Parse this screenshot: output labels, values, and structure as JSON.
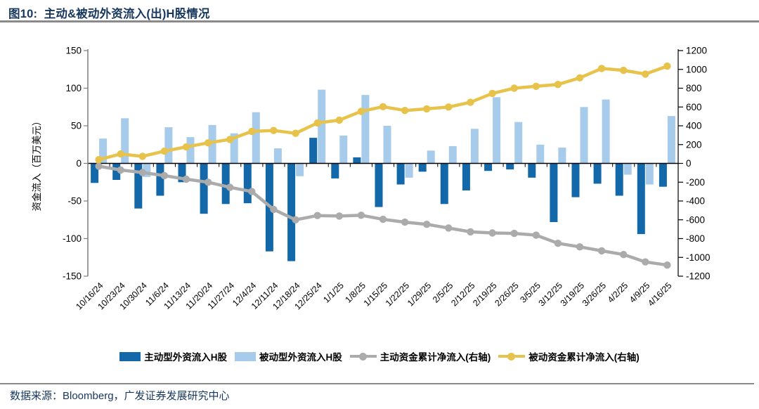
{
  "header": {
    "title": "图10:  主动&被动外资流入(出)H股情况"
  },
  "footer": {
    "source": "数据来源：Bloomberg，广发证券发展研究中心"
  },
  "chart_data": {
    "type": "combo-bar-line",
    "categories": [
      "10/16/24",
      "10/23/24",
      "10/30/24",
      "11/6/24",
      "11/13/24",
      "11/20/24",
      "11/27/24",
      "12/4/24",
      "12/11/24",
      "12/18/24",
      "12/25/24",
      "1/1/25",
      "1/8/25",
      "1/15/25",
      "1/22/25",
      "1/29/25",
      "2/5/25",
      "2/12/25",
      "2/19/25",
      "2/26/25",
      "3/5/25",
      "3/12/25",
      "3/19/25",
      "3/26/25",
      "4/2/25",
      "4/9/25",
      "4/16/25"
    ],
    "series": [
      {
        "name": "主动型外资流入H股",
        "type": "bar",
        "axis": "left",
        "color": "#1268A8",
        "values": [
          -26,
          -22,
          -60,
          -43,
          -25,
          -67,
          -54,
          -53,
          -117,
          -130,
          34,
          -20,
          8,
          -58,
          -28,
          -11,
          -54,
          -36,
          -10,
          -8,
          -19,
          -78,
          -45,
          -27,
          -43,
          -94,
          -31
        ]
      },
      {
        "name": "被动型外资流入H股",
        "type": "bar",
        "axis": "left",
        "color": "#A7CBEA",
        "values": [
          33,
          60,
          -18,
          48,
          35,
          51,
          40,
          68,
          20,
          -17,
          98,
          37,
          91,
          50,
          -19,
          17,
          23,
          46,
          88,
          55,
          25,
          21,
          75,
          85,
          -15,
          -28,
          63
        ]
      },
      {
        "name": "主动资金累计净流入(右轴)",
        "type": "line",
        "axis": "right",
        "color": "#ABABAB",
        "values": [
          -30,
          -70,
          -97,
          -130,
          -168,
          -200,
          -255,
          -300,
          -490,
          -600,
          -555,
          -560,
          -552,
          -595,
          -625,
          -648,
          -688,
          -728,
          -740,
          -745,
          -763,
          -850,
          -888,
          -930,
          -970,
          -1048,
          -1082
        ]
      },
      {
        "name": "被动资金累计净流入(右轴)",
        "type": "line",
        "axis": "right",
        "color": "#E7C34B",
        "values": [
          40,
          100,
          75,
          130,
          175,
          218,
          255,
          340,
          350,
          320,
          430,
          460,
          553,
          603,
          563,
          580,
          600,
          650,
          745,
          800,
          820,
          840,
          910,
          1010,
          990,
          950,
          1035
        ]
      }
    ],
    "left_axis": {
      "title": "资金流入（百万美元）",
      "min": -150,
      "max": 150,
      "step": 50,
      "ticks": [
        150,
        100,
        50,
        0,
        -50,
        -100,
        -150
      ]
    },
    "right_axis": {
      "min": -1200,
      "max": 1200,
      "step": 200,
      "ticks": [
        1200,
        1000,
        800,
        600,
        400,
        200,
        0,
        -200,
        -400,
        -600,
        -800,
        -1000,
        -1200
      ]
    },
    "grid": false,
    "legend_position": "bottom"
  }
}
